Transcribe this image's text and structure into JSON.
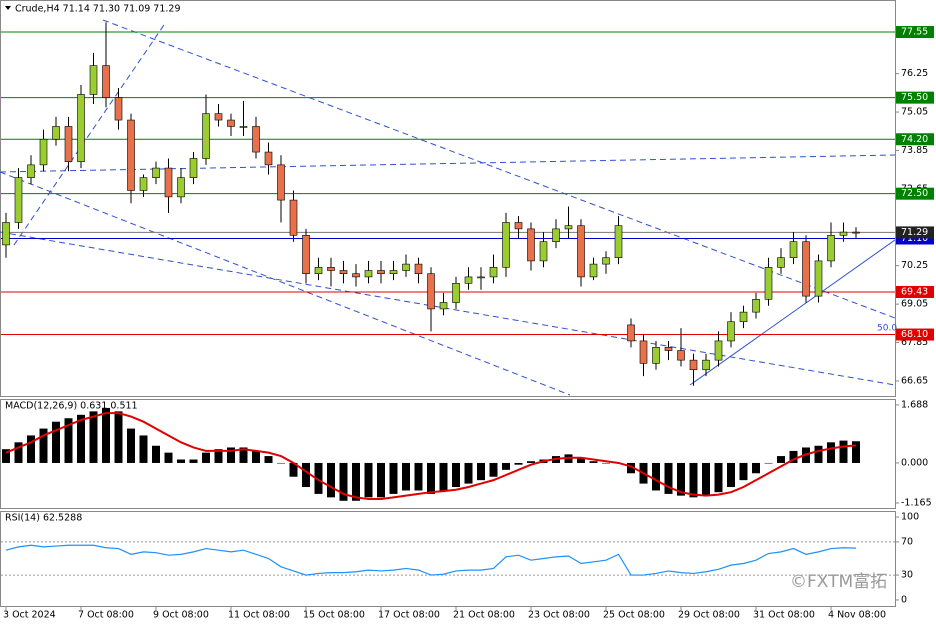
{
  "chart_data": [
    {
      "type": "candlestick",
      "title": "Crude,H4 71.14 71.30 71.09 71.29",
      "categories": [
        "3 Oct 2024",
        null,
        null,
        null,
        null,
        null,
        "7 Oct 08:00",
        null,
        null,
        null,
        null,
        null,
        "9 Oct 08:00",
        null,
        null,
        null,
        null,
        null,
        "11 Oct 08:00",
        null,
        null,
        null,
        null,
        null,
        "15 Oct 08:00",
        null,
        null,
        null,
        null,
        null,
        "17 Oct 08:00",
        null,
        null,
        null,
        null,
        null,
        "21 Oct 08:00",
        null,
        null,
        null,
        null,
        null,
        "23 Oct 08:00",
        null,
        null,
        null,
        null,
        null,
        "25 Oct 08:00",
        null,
        null,
        null,
        null,
        null,
        "29 Oct 08:00",
        null,
        null,
        null,
        null,
        null,
        "31 Oct 08:00",
        null,
        null,
        null,
        null,
        null,
        "4 Nov 08:00",
        null,
        null
      ],
      "open": [
        70.9,
        71.6,
        73.0,
        73.4,
        74.2,
        74.6,
        73.5,
        75.6,
        76.5,
        75.5,
        74.8,
        72.6,
        73.0,
        73.3,
        72.4,
        73.0,
        73.6,
        75.0,
        74.8,
        74.6,
        74.6,
        73.8,
        73.4,
        72.3,
        71.2,
        70.0,
        70.2,
        70.1,
        70.0,
        69.9,
        70.1,
        70.0,
        70.1,
        70.3,
        70.0,
        68.9,
        69.1,
        69.7,
        69.9,
        69.9,
        70.2,
        71.6,
        71.4,
        70.4,
        71.0,
        71.4,
        71.5,
        69.9,
        70.3,
        70.5,
        68.4,
        67.9,
        67.2,
        67.7,
        67.6,
        67.3,
        67.0,
        67.3,
        67.9,
        68.5,
        68.8,
        69.2,
        70.2,
        70.5,
        71.0,
        69.3,
        70.4,
        71.2,
        71.3
      ],
      "high": [
        71.9,
        73.3,
        73.7,
        74.5,
        74.9,
        74.9,
        75.9,
        76.9,
        77.85,
        75.8,
        75.0,
        73.1,
        73.5,
        73.6,
        73.3,
        73.8,
        75.6,
        75.3,
        75.0,
        75.4,
        74.9,
        74.1,
        73.7,
        72.6,
        71.4,
        70.5,
        70.5,
        70.4,
        70.3,
        70.4,
        70.4,
        70.4,
        70.6,
        70.5,
        70.2,
        69.4,
        69.9,
        70.2,
        70.2,
        70.6,
        71.9,
        71.8,
        71.6,
        71.3,
        71.7,
        72.1,
        71.7,
        70.5,
        70.7,
        71.8,
        68.6,
        68.1,
        67.9,
        67.9,
        68.3,
        67.5,
        67.5,
        68.2,
        68.8,
        69.0,
        69.4,
        70.5,
        70.8,
        71.3,
        71.2,
        70.6,
        71.6,
        71.6,
        71.45
      ],
      "low": [
        70.5,
        71.4,
        72.8,
        73.2,
        74.0,
        73.2,
        73.3,
        75.3,
        75.2,
        74.5,
        72.2,
        72.4,
        72.8,
        71.9,
        72.2,
        72.8,
        73.4,
        74.6,
        74.3,
        74.3,
        73.6,
        73.1,
        71.6,
        71.0,
        69.7,
        69.8,
        69.6,
        69.7,
        69.6,
        69.7,
        69.7,
        69.8,
        69.9,
        69.7,
        68.2,
        68.7,
        68.9,
        69.5,
        69.5,
        69.7,
        69.9,
        71.1,
        70.1,
        70.2,
        70.8,
        71.1,
        69.6,
        69.8,
        70.0,
        70.3,
        67.7,
        66.8,
        67.0,
        67.3,
        67.1,
        66.5,
        66.8,
        67.1,
        67.7,
        68.3,
        68.6,
        69.0,
        70.0,
        70.3,
        69.1,
        69.1,
        70.2,
        71.0,
        71.09
      ],
      "close": [
        71.6,
        73.0,
        73.4,
        74.2,
        74.6,
        73.5,
        75.6,
        76.5,
        75.5,
        74.8,
        72.6,
        73.0,
        73.3,
        72.4,
        73.0,
        73.6,
        75.0,
        74.8,
        74.6,
        74.6,
        73.8,
        73.4,
        72.3,
        71.2,
        70.0,
        70.2,
        70.1,
        70.0,
        69.9,
        70.1,
        70.0,
        70.1,
        70.3,
        70.0,
        68.9,
        69.1,
        69.7,
        69.9,
        69.9,
        70.2,
        71.6,
        71.4,
        70.4,
        71.0,
        71.4,
        71.5,
        69.9,
        70.3,
        70.5,
        71.5,
        67.9,
        67.2,
        67.7,
        67.6,
        67.3,
        67.0,
        67.3,
        67.9,
        68.5,
        68.8,
        69.2,
        70.2,
        70.5,
        71.0,
        69.3,
        70.4,
        71.2,
        71.3,
        71.29
      ],
      "up_color": "#9acd32",
      "down_color": "#e8704a",
      "ylim": [
        66.18,
        78.55
      ],
      "yticks": [
        76.25,
        75.05,
        73.85,
        72.65,
        70.25,
        69.05,
        67.85,
        66.65
      ],
      "levels": [
        {
          "value": 77.55,
          "color": "#008000"
        },
        {
          "value": 75.5,
          "label": "75.50",
          "color": "#008000"
        },
        {
          "value": 74.2,
          "label": "74.20",
          "color": "#008000"
        },
        {
          "value": 72.5,
          "label": "72.50",
          "color": "#008000"
        },
        {
          "value": 71.1,
          "label": "71.10",
          "color": "#0000cd"
        },
        {
          "value": 69.43,
          "color": "#e00000"
        },
        {
          "value": 68.1,
          "label": "68.10",
          "color": "#e00000"
        }
      ],
      "current": 71.29,
      "fib_label": "50.0"
    },
    {
      "type": "macd",
      "title": "MACD(12,26,9) 0.631 0.511",
      "histogram": [
        0.4,
        0.6,
        0.8,
        1.0,
        1.2,
        1.3,
        1.4,
        1.5,
        1.6,
        1.5,
        1.0,
        0.8,
        0.5,
        0.3,
        0.1,
        0.1,
        0.3,
        0.4,
        0.45,
        0.45,
        0.35,
        0.2,
        0.0,
        -0.4,
        -0.7,
        -0.9,
        -1.0,
        -1.1,
        -1.1,
        -1.0,
        -1.0,
        -0.9,
        -0.8,
        -0.8,
        -0.9,
        -0.8,
        -0.7,
        -0.6,
        -0.5,
        -0.4,
        -0.2,
        -0.05,
        0.05,
        0.1,
        0.2,
        0.25,
        0.15,
        0.05,
        0.0,
        0.0,
        -0.3,
        -0.6,
        -0.8,
        -0.9,
        -0.95,
        -1.0,
        -0.95,
        -0.85,
        -0.7,
        -0.5,
        -0.3,
        0.0,
        0.2,
        0.35,
        0.45,
        0.5,
        0.6,
        0.65,
        0.631
      ],
      "signal": [
        0.3,
        0.45,
        0.6,
        0.8,
        0.95,
        1.1,
        1.25,
        1.35,
        1.45,
        1.45,
        1.35,
        1.2,
        1.0,
        0.8,
        0.6,
        0.45,
        0.35,
        0.35,
        0.35,
        0.4,
        0.35,
        0.3,
        0.2,
        0.0,
        -0.25,
        -0.5,
        -0.7,
        -0.9,
        -1.0,
        -1.05,
        -1.05,
        -1.0,
        -0.95,
        -0.9,
        -0.85,
        -0.82,
        -0.78,
        -0.7,
        -0.6,
        -0.5,
        -0.35,
        -0.2,
        -0.05,
        0.05,
        0.12,
        0.15,
        0.15,
        0.1,
        0.05,
        0.0,
        -0.1,
        -0.3,
        -0.5,
        -0.7,
        -0.85,
        -0.92,
        -0.95,
        -0.92,
        -0.85,
        -0.7,
        -0.5,
        -0.3,
        -0.1,
        0.1,
        0.25,
        0.35,
        0.42,
        0.48,
        0.511
      ],
      "histogram_color": "#000000",
      "signal_color": "#e00000",
      "ylim": [
        -1.31,
        1.86
      ],
      "yticks": [
        1.688,
        {
          "value": 0,
          "label": "0.000"
        },
        -1.165
      ]
    },
    {
      "type": "line",
      "title": "RSI(14) 62.5288",
      "values": [
        60,
        64,
        66,
        64,
        65,
        66,
        66,
        66,
        63,
        62,
        55,
        58,
        57,
        54,
        55,
        58,
        62,
        60,
        58,
        60,
        55,
        50,
        40,
        35,
        30,
        32,
        33,
        33,
        34,
        36,
        35,
        36,
        38,
        36,
        30,
        31,
        35,
        36,
        36,
        38,
        52,
        54,
        48,
        50,
        52,
        53,
        44,
        46,
        48,
        55,
        30,
        30,
        32,
        35,
        33,
        32,
        34,
        37,
        42,
        44,
        48,
        56,
        58,
        62,
        55,
        58,
        62,
        63,
        62.5288
      ],
      "color": "#1e90ff",
      "ylim": [
        -7.3,
        107.3
      ],
      "yticks": [
        100,
        70,
        30,
        0
      ]
    }
  ],
  "watermark": "©FXTM富拓"
}
